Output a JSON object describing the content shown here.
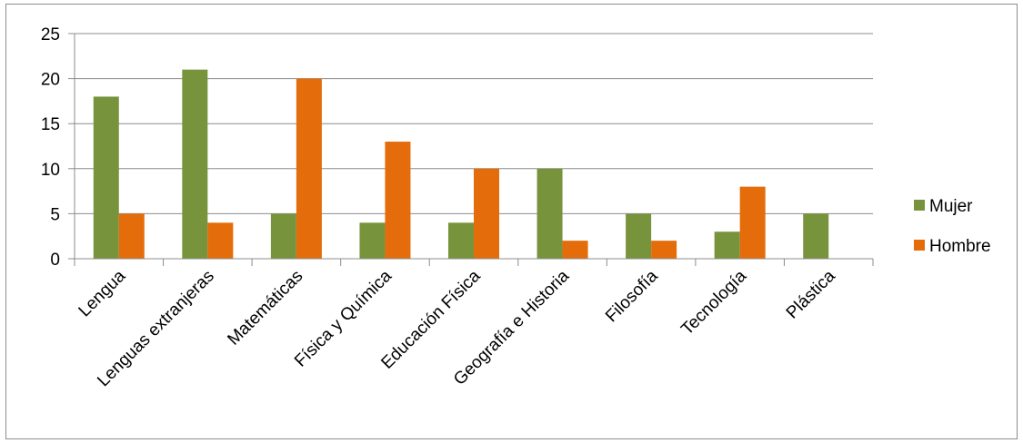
{
  "chart_data": {
    "type": "bar",
    "title": "",
    "xlabel": "",
    "ylabel": "",
    "ylim": [
      0,
      25
    ],
    "yticks": [
      0,
      5,
      10,
      15,
      20,
      25
    ],
    "grid": true,
    "legend_position": "right",
    "categories": [
      "Lengua",
      "Lenguas extranjeras",
      "Matemáticas",
      "Física y Química",
      "Educación Física",
      "Geografía e Historia",
      "Filosofía",
      "Tecnología",
      "Plástica"
    ],
    "series": [
      {
        "name": "Mujer",
        "color": "#77933c",
        "values": [
          18,
          21,
          5,
          4,
          4,
          10,
          5,
          3,
          5
        ]
      },
      {
        "name": "Hombre",
        "color": "#e46c0a",
        "values": [
          5,
          4,
          20,
          13,
          10,
          2,
          2,
          8,
          0
        ]
      }
    ]
  }
}
